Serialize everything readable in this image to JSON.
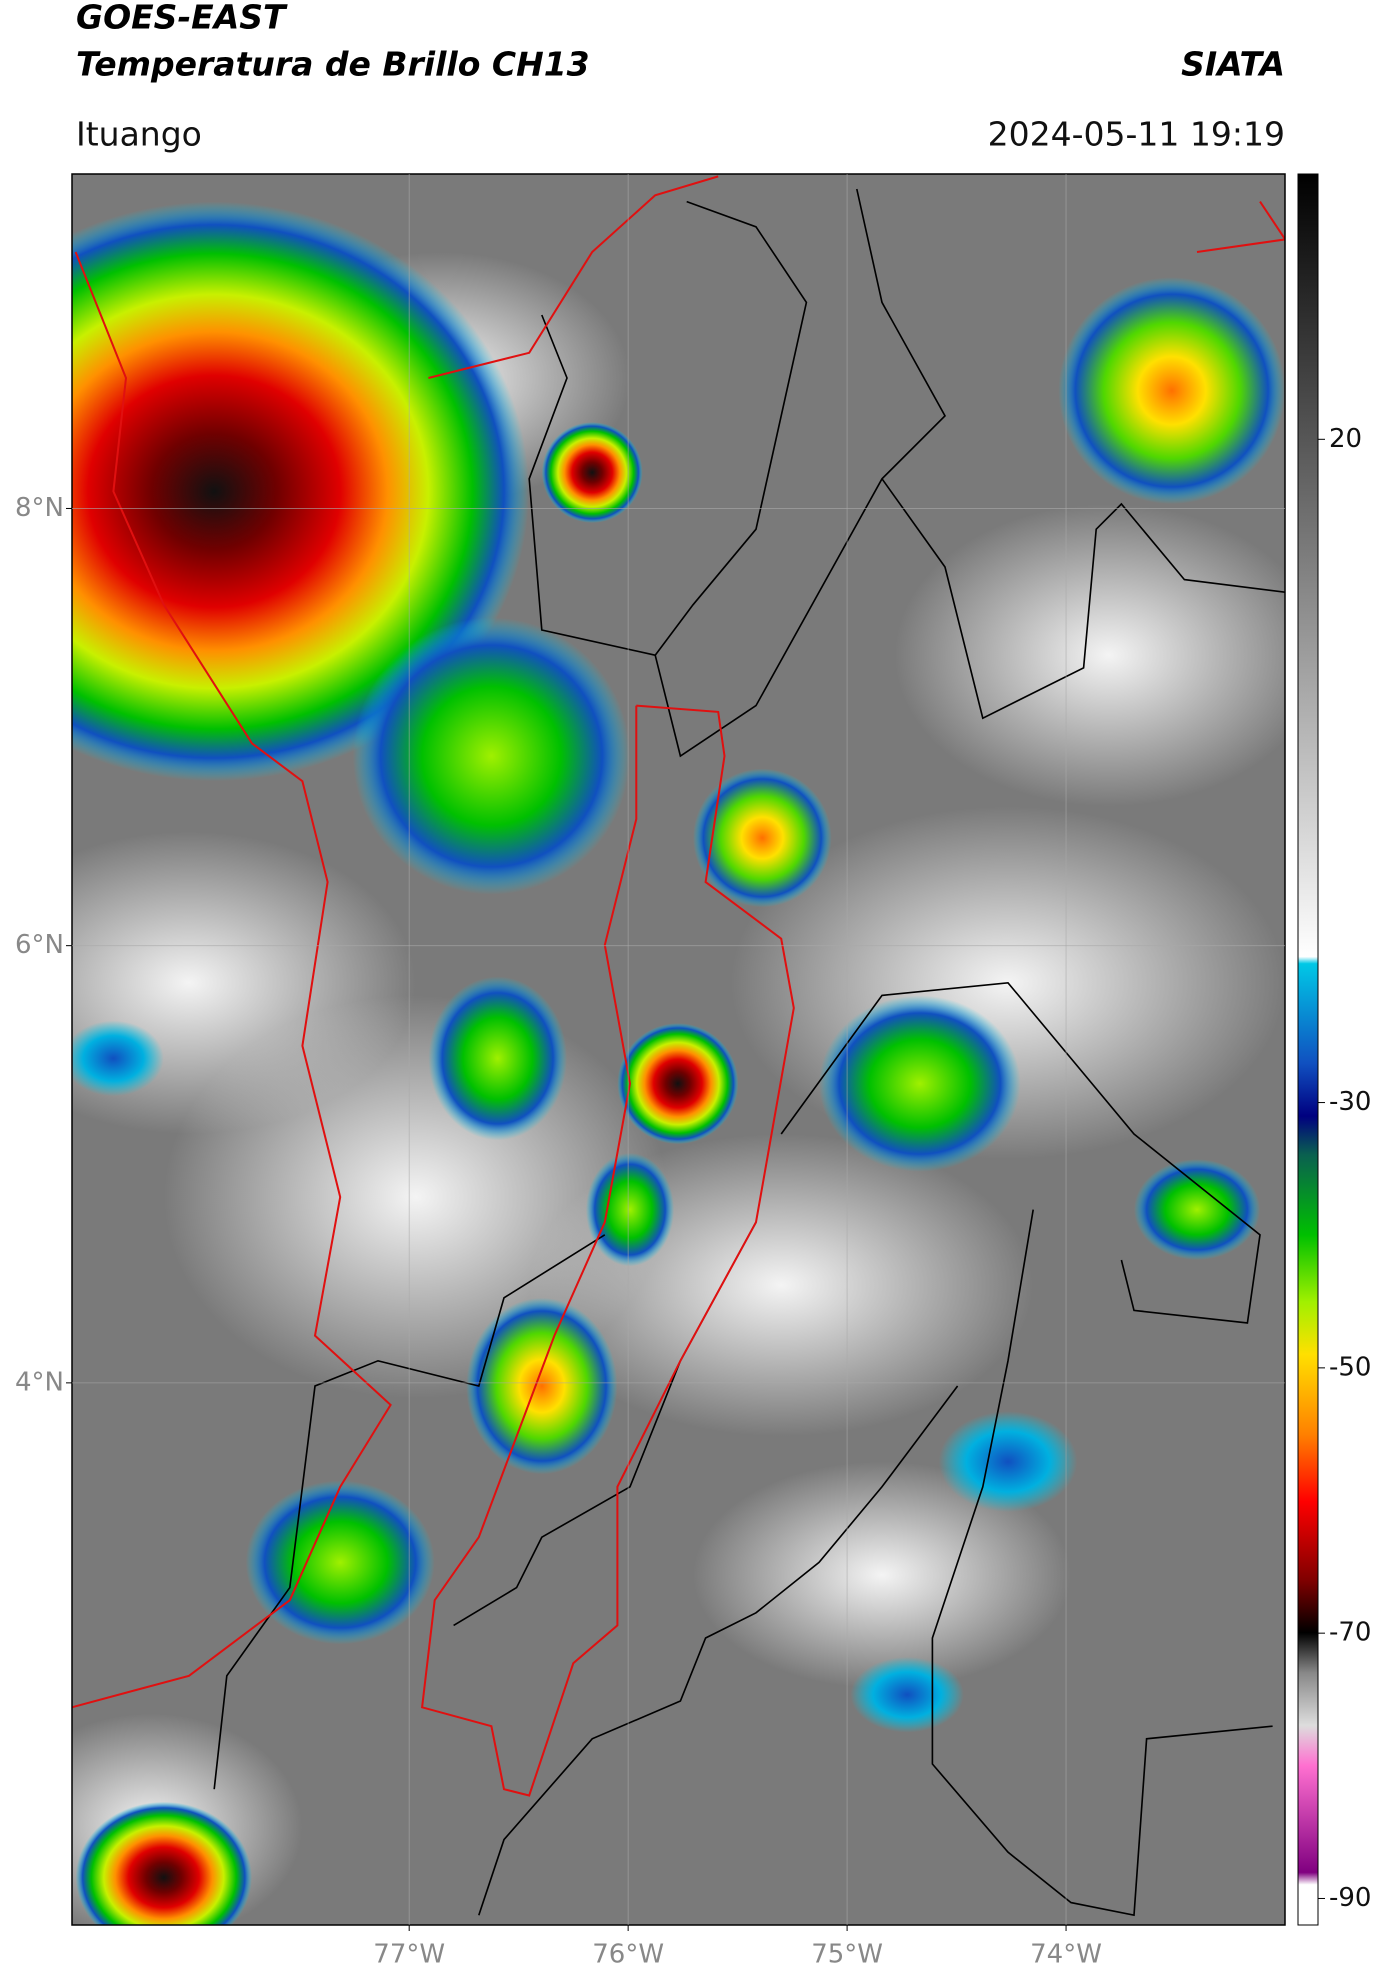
{
  "header": {
    "title": "GOES-EAST",
    "subtitle": "Temperatura de Brillo CH13",
    "source": "SIATA",
    "location": "Ituango",
    "datetime": "2024-05-11 19:19"
  },
  "map": {
    "xlim": [
      -78.54,
      -73.0
    ],
    "ylim": [
      1.52,
      9.53
    ],
    "xticks": [
      {
        "value": -77,
        "label": "77°W"
      },
      {
        "value": -76,
        "label": "76°W"
      },
      {
        "value": -75,
        "label": "75°W"
      },
      {
        "value": -74,
        "label": "74°W"
      }
    ],
    "yticks": [
      {
        "value": 8,
        "label": "8°N"
      },
      {
        "value": 6,
        "label": "6°N"
      },
      {
        "value": 4,
        "label": "4°N"
      }
    ],
    "grid": true
  },
  "colorbar": {
    "lim": [
      -92,
      40
    ],
    "ticks": [
      20,
      -30,
      -50,
      -70,
      -90
    ]
  }
}
